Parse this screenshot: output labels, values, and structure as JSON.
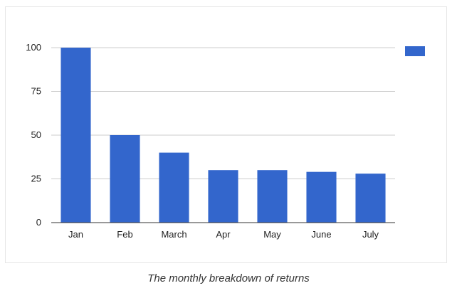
{
  "caption": "The monthly breakdown of returns",
  "chart_data": {
    "type": "bar",
    "categories": [
      "Jan",
      "Feb",
      "March",
      "Apr",
      "May",
      "June",
      "July"
    ],
    "values": [
      100,
      50,
      40,
      30,
      30,
      29,
      28
    ],
    "yticks": [
      0,
      25,
      50,
      75,
      100
    ],
    "ylim": [
      0,
      100
    ],
    "grid": true,
    "legend": "top-right",
    "colors": {
      "bar": "#3366cc",
      "grid": "#cccccc",
      "axis": "#333333"
    }
  }
}
